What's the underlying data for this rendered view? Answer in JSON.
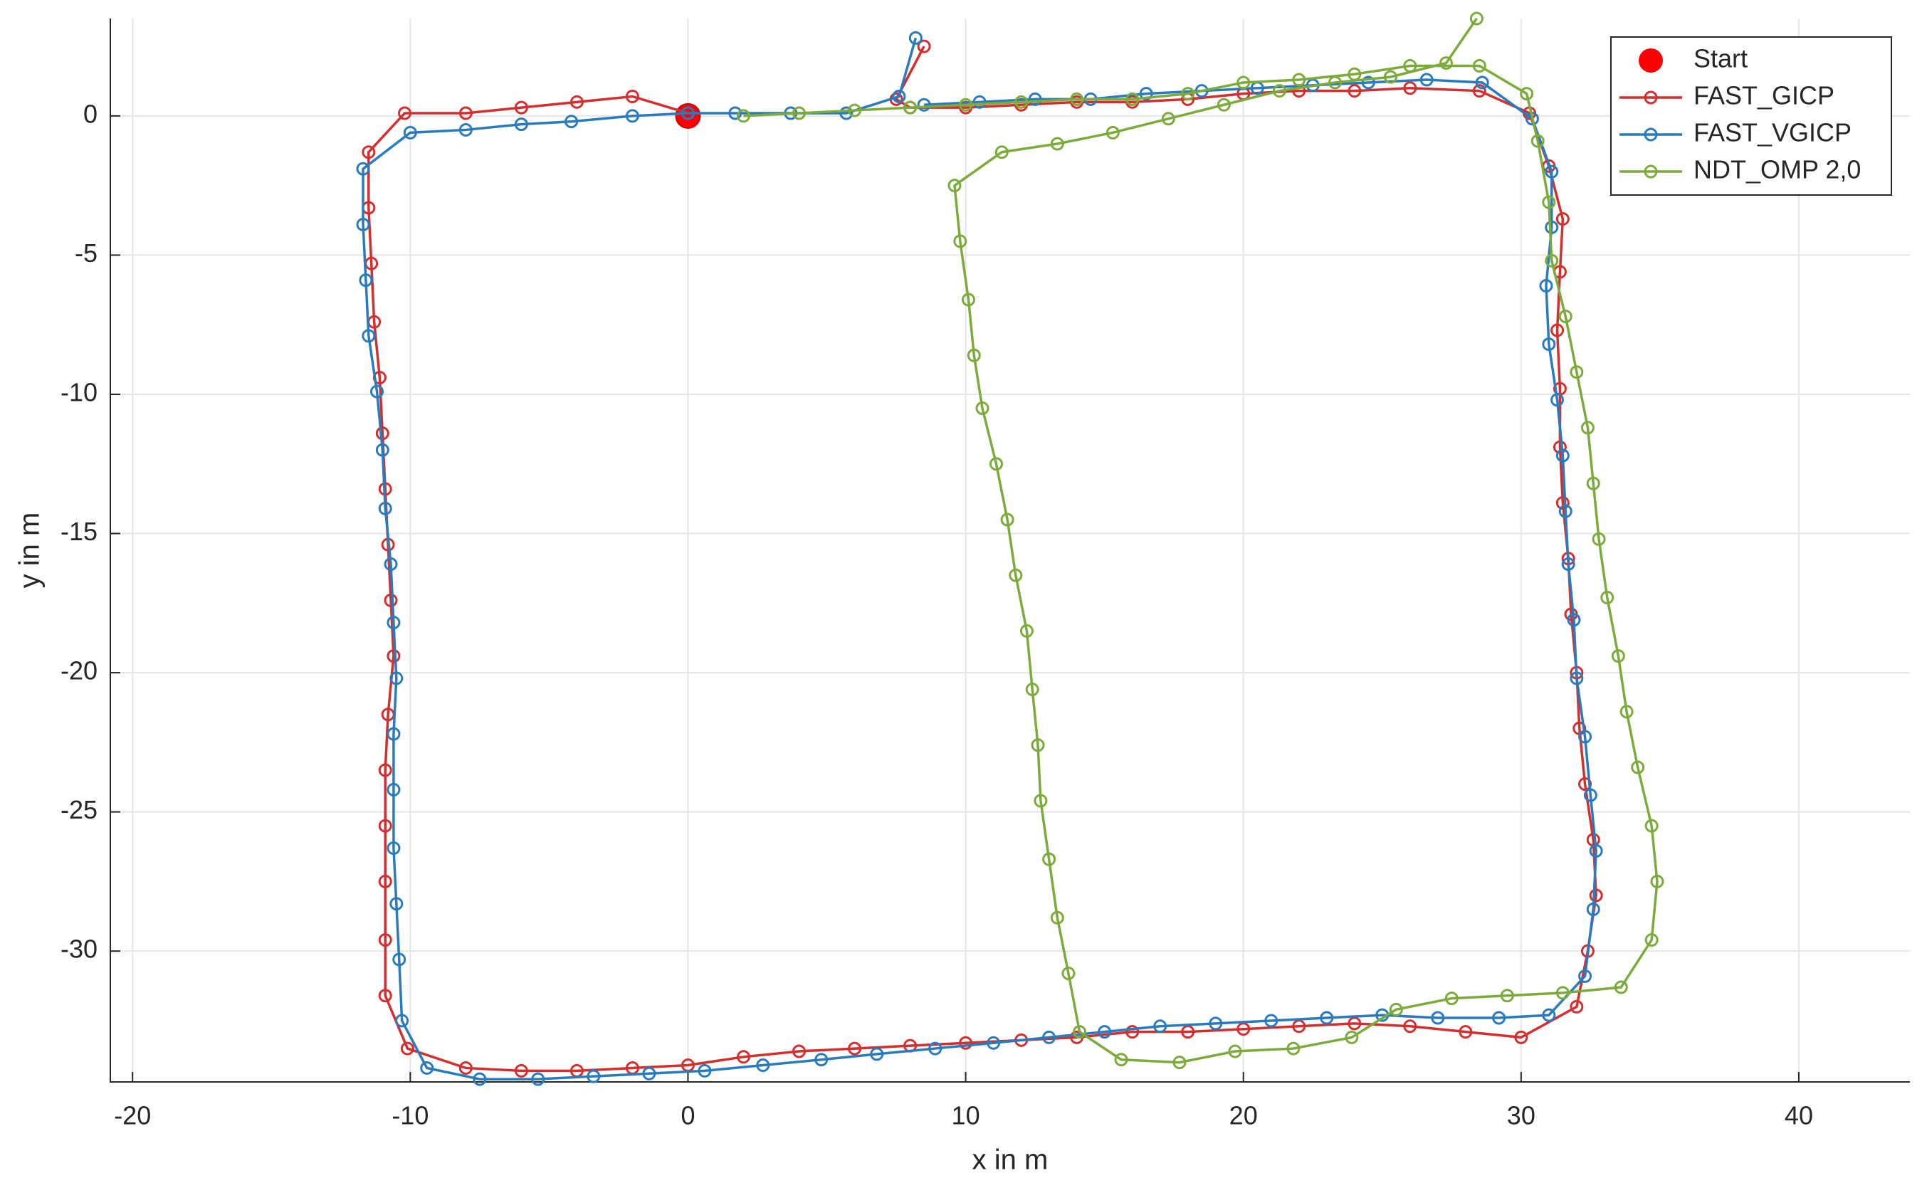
{
  "chart_data": {
    "type": "line",
    "xlabel": "x in m",
    "ylabel": "y in m",
    "xlim": [
      -20.8,
      44
    ],
    "ylim": [
      -34.7,
      3.5
    ],
    "xticks": [
      -20,
      -10,
      0,
      10,
      20,
      30,
      40
    ],
    "yticks": [
      0,
      -5,
      -10,
      -15,
      -20,
      -25,
      -30
    ],
    "grid": true,
    "legend": "upper right",
    "series": [
      {
        "name": "Start",
        "color": "#ff0000",
        "line": false,
        "x": [
          0
        ],
        "values": [
          0
        ]
      },
      {
        "name": "FAST_GICP",
        "color": "#d32f2f",
        "line": true,
        "x": [
          8.5,
          7.5,
          8,
          10,
          12,
          14,
          16,
          18,
          20,
          22,
          24,
          26,
          28.5,
          30.3,
          31,
          31.5,
          31.4,
          31.3,
          31.4,
          31.4,
          31.5,
          31.7,
          31.8,
          32,
          32.1,
          32.3,
          32.6,
          32.7,
          32.4,
          32,
          30,
          28,
          26,
          24,
          22,
          20,
          18,
          16,
          14,
          12,
          10,
          8,
          6,
          4,
          2,
          0,
          -2,
          -4,
          -6,
          -8,
          -10.1,
          -10.9,
          -10.9,
          -10.9,
          -10.9,
          -10.9,
          -10.8,
          -10.6,
          -10.7,
          -10.8,
          -10.9,
          -11,
          -11.1,
          -11.3,
          -11.4,
          -11.5,
          -11.5,
          -10.2,
          -8,
          -6,
          -4,
          -2,
          0
        ],
        "values": [
          2.5,
          0.6,
          0.3,
          0.3,
          0.4,
          0.5,
          0.5,
          0.6,
          0.8,
          0.9,
          0.9,
          1,
          0.9,
          0.1,
          -1.8,
          -3.7,
          -5.6,
          -7.7,
          -9.8,
          -11.9,
          -13.9,
          -15.9,
          -17.9,
          -20,
          -22,
          -24,
          -26,
          -28,
          -30,
          -32,
          -33.1,
          -32.9,
          -32.7,
          -32.6,
          -32.7,
          -32.8,
          -32.9,
          -32.9,
          -33.1,
          -33.2,
          -33.3,
          -33.4,
          -33.5,
          -33.6,
          -33.8,
          -34.1,
          -34.2,
          -34.3,
          -34.3,
          -34.2,
          -33.5,
          -31.6,
          -29.6,
          -27.5,
          -25.5,
          -23.5,
          -21.5,
          -19.4,
          -17.4,
          -15.4,
          -13.4,
          -11.4,
          -9.4,
          -7.4,
          -5.3,
          -3.3,
          -1.3,
          0.1,
          0.1,
          0.3,
          0.5,
          0.7,
          0.1
        ]
      },
      {
        "name": "FAST_VGICP",
        "color": "#2a7bbd",
        "line": true,
        "x": [
          8.2,
          7.6,
          5.7,
          3.7,
          1.7,
          0,
          -2,
          -4.2,
          -6,
          -8,
          -10,
          -11.7,
          -11.7,
          -11.6,
          -11.5,
          -11.2,
          -11,
          -10.9,
          -10.7,
          -10.6,
          -10.5,
          -10.6,
          -10.6,
          -10.6,
          -10.5,
          -10.4,
          -10.3,
          -9.4,
          -7.5,
          -5.4,
          -3.4,
          -1.4,
          0.6,
          2.7,
          4.8,
          6.8,
          8.9,
          11,
          13,
          15,
          17,
          19,
          21,
          23,
          25,
          27,
          29.2,
          31,
          32.3,
          32.6,
          32.7,
          32.5,
          32.3,
          32,
          31.9,
          31.7,
          31.6,
          31.5,
          31.3,
          31,
          30.9,
          31.1,
          31.1,
          30.4,
          28.6,
          26.6,
          24.5,
          22.5,
          20.5,
          18.5,
          16.5,
          14.5,
          12.5,
          10.5,
          8.5
        ],
        "values": [
          2.8,
          0.7,
          0.1,
          0.1,
          0.1,
          0.1,
          0,
          -0.2,
          -0.3,
          -0.5,
          -0.6,
          -1.9,
          -3.9,
          -5.9,
          -7.9,
          -9.9,
          -12,
          -14.1,
          -16.1,
          -18.2,
          -20.2,
          -22.2,
          -24.2,
          -26.3,
          -28.3,
          -30.3,
          -32.5,
          -34.2,
          -34.6,
          -34.6,
          -34.5,
          -34.4,
          -34.3,
          -34.1,
          -33.9,
          -33.7,
          -33.5,
          -33.3,
          -33.1,
          -32.9,
          -32.7,
          -32.6,
          -32.5,
          -32.4,
          -32.3,
          -32.4,
          -32.4,
          -32.3,
          -30.9,
          -28.5,
          -26.4,
          -24.4,
          -22.3,
          -20.2,
          -18.1,
          -16.1,
          -14.2,
          -12.2,
          -10.2,
          -8.2,
          -6.1,
          -4,
          -2,
          -0.1,
          1.2,
          1.3,
          1.2,
          1.1,
          1,
          0.9,
          0.8,
          0.6,
          0.6,
          0.5,
          0.4
        ]
      },
      {
        "name": "NDT_OMP 2,0",
        "color": "#7cab3c",
        "line": true,
        "x": [
          2,
          4,
          6,
          8,
          10,
          12,
          14,
          16,
          18,
          20,
          22,
          24,
          26,
          28.5,
          30.2,
          30.6,
          31,
          31.1,
          31.6,
          32,
          32.4,
          32.6,
          32.8,
          33.1,
          33.5,
          33.8,
          34.2,
          34.7,
          34.9,
          34.7,
          33.6,
          31.5,
          29.5,
          27.5,
          25.5,
          23.9,
          21.8,
          19.7,
          17.7,
          15.6,
          14.1,
          13.7,
          13.3,
          13,
          12.7,
          12.6,
          12.4,
          12.2,
          11.8,
          11.5,
          11.1,
          10.6,
          10.3,
          10.1,
          9.8,
          9.6,
          11.3,
          13.3,
          15.3,
          17.3,
          19.3,
          21.3,
          23.3,
          25.3,
          27.3,
          28.4
        ],
        "values": [
          0,
          0.1,
          0.2,
          0.3,
          0.4,
          0.5,
          0.6,
          0.6,
          0.8,
          1.2,
          1.3,
          1.5,
          1.8,
          1.8,
          0.8,
          -0.9,
          -3.1,
          -5.2,
          -7.2,
          -9.2,
          -11.2,
          -13.2,
          -15.2,
          -17.3,
          -19.4,
          -21.4,
          -23.4,
          -25.5,
          -27.5,
          -29.6,
          -31.3,
          -31.5,
          -31.6,
          -31.7,
          -32.1,
          -33.1,
          -33.5,
          -33.6,
          -34,
          -33.9,
          -32.9,
          -30.8,
          -28.8,
          -26.7,
          -24.6,
          -22.6,
          -20.6,
          -18.5,
          -16.5,
          -14.5,
          -12.5,
          -10.5,
          -8.6,
          -6.6,
          -4.5,
          -2.5,
          -1.3,
          -1,
          -0.6,
          -0.1,
          0.4,
          0.9,
          1.2,
          1.4,
          1.9,
          3.5
        ]
      }
    ]
  }
}
